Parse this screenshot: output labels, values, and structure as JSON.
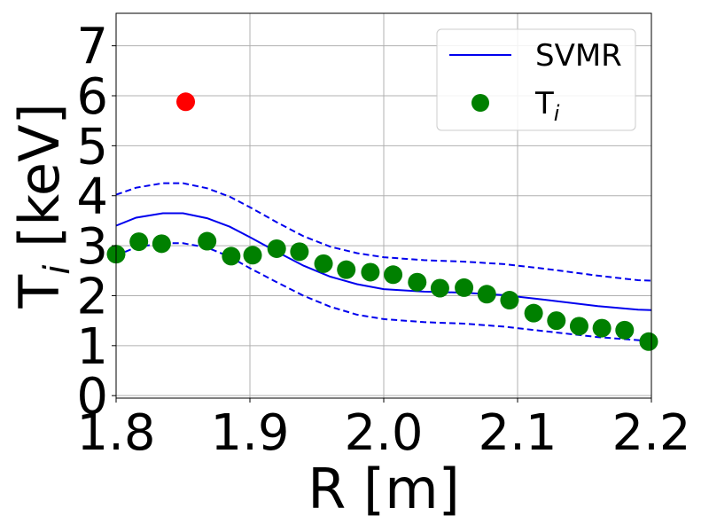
{
  "chart_data": {
    "type": "line",
    "xlabel": "R [m]",
    "ylabel_main": "T",
    "ylabel_sub": "i",
    "ylabel_unit": " [keV]",
    "xlim": [
      1.8,
      2.2
    ],
    "ylim": [
      -0.05,
      7.65
    ],
    "grid": true,
    "legend_position": "top-right",
    "xticks": [
      {
        "value": 1.8,
        "label": "1.8"
      },
      {
        "value": 1.9,
        "label": "1.9"
      },
      {
        "value": 2.0,
        "label": "2.0"
      },
      {
        "value": 2.1,
        "label": "2.1"
      },
      {
        "value": 2.2,
        "label": "2.2"
      }
    ],
    "yticks": [
      {
        "value": 0,
        "label": "0"
      },
      {
        "value": 1,
        "label": "1"
      },
      {
        "value": 2,
        "label": "2"
      },
      {
        "value": 3,
        "label": "3"
      },
      {
        "value": 4,
        "label": "4"
      },
      {
        "value": 5,
        "label": "5"
      },
      {
        "value": 6,
        "label": "6"
      },
      {
        "value": 7,
        "label": "7"
      }
    ],
    "legend": [
      {
        "label": "SVMR",
        "kind": "line",
        "color": "#0000ee"
      },
      {
        "label": "T",
        "sub": "i",
        "kind": "marker",
        "color": "#008000"
      }
    ],
    "series": [
      {
        "name": "SVMR",
        "kind": "line",
        "style": "solid",
        "color": "#0000ee",
        "x": [
          1.8,
          1.815,
          1.835,
          1.85,
          1.868,
          1.885,
          1.9,
          1.92,
          1.94,
          1.96,
          1.98,
          2.0,
          2.03,
          2.06,
          2.09,
          2.12,
          2.16,
          2.19,
          2.2
        ],
        "y": [
          3.4,
          3.56,
          3.65,
          3.65,
          3.55,
          3.38,
          3.17,
          2.88,
          2.6,
          2.38,
          2.23,
          2.13,
          2.08,
          2.06,
          2.01,
          1.92,
          1.79,
          1.72,
          1.71
        ]
      },
      {
        "name": "upper bound",
        "kind": "line",
        "style": "dashed",
        "color": "#0000ee",
        "x": [
          1.8,
          1.815,
          1.835,
          1.85,
          1.868,
          1.885,
          1.9,
          1.92,
          1.94,
          1.96,
          1.98,
          2.0,
          2.03,
          2.06,
          2.09,
          2.12,
          2.16,
          2.19,
          2.2
        ],
        "y": [
          4.02,
          4.16,
          4.25,
          4.25,
          4.15,
          3.98,
          3.77,
          3.47,
          3.19,
          2.98,
          2.85,
          2.77,
          2.71,
          2.68,
          2.63,
          2.54,
          2.4,
          2.31,
          2.3
        ]
      },
      {
        "name": "lower bound",
        "kind": "line",
        "style": "dashed",
        "color": "#0000ee",
        "x": [
          1.8,
          1.815,
          1.835,
          1.85,
          1.868,
          1.885,
          1.9,
          1.92,
          1.94,
          1.96,
          1.98,
          2.0,
          2.03,
          2.06,
          2.09,
          2.12,
          2.16,
          2.19,
          2.2
        ],
        "y": [
          2.8,
          2.97,
          3.05,
          3.05,
          2.96,
          2.78,
          2.55,
          2.27,
          2.0,
          1.78,
          1.62,
          1.53,
          1.47,
          1.44,
          1.38,
          1.29,
          1.17,
          1.11,
          1.09
        ]
      },
      {
        "name": "T_i",
        "kind": "scatter",
        "color": "#008000",
        "x": [
          1.8,
          1.817,
          1.834,
          1.868,
          1.886,
          1.902,
          1.92,
          1.937,
          1.955,
          1.972,
          1.99,
          2.007,
          2.025,
          2.042,
          2.06,
          2.077,
          2.094,
          2.112,
          2.129,
          2.146,
          2.163,
          2.18,
          2.198
        ],
        "y": [
          2.83,
          3.08,
          3.04,
          3.09,
          2.79,
          2.81,
          2.94,
          2.88,
          2.64,
          2.52,
          2.47,
          2.42,
          2.27,
          2.15,
          2.16,
          2.03,
          1.91,
          1.65,
          1.5,
          1.39,
          1.35,
          1.31,
          1.08
        ]
      },
      {
        "name": "outlier",
        "kind": "scatter",
        "color": "#ff0000",
        "x": [
          1.852
        ],
        "y": [
          5.88
        ]
      }
    ]
  }
}
